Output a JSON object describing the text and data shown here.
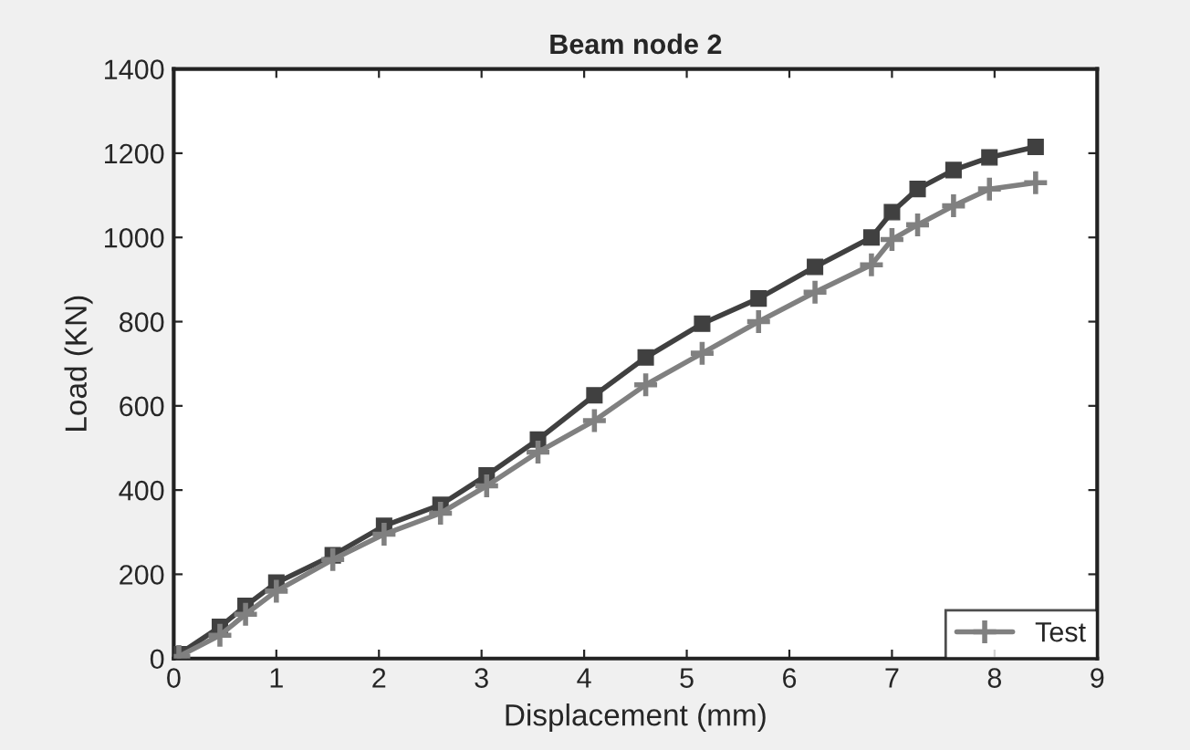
{
  "chart_data": {
    "type": "line",
    "title": "Beam node 2",
    "xlabel": "Displacement (mm)",
    "ylabel": "Load (KN)",
    "xlim": [
      0,
      9
    ],
    "xticks": [
      0,
      1,
      2,
      3,
      4,
      5,
      6,
      7,
      8,
      9
    ],
    "ylim": [
      0,
      1400
    ],
    "yticks": [
      0,
      200,
      400,
      600,
      800,
      1000,
      1200,
      1400
    ],
    "grid": false,
    "legend": "bottom right",
    "line_style": "solid",
    "series": [
      {
        "name": "Test",
        "color": "#808080",
        "marker": "cross",
        "x": [
          0.05,
          0.45,
          0.7,
          1.0,
          1.55,
          2.05,
          2.6,
          3.05,
          3.55,
          4.1,
          4.6,
          5.15,
          5.7,
          6.25,
          6.8,
          7.0,
          7.25,
          7.6,
          7.95,
          8.4
        ],
        "values": [
          5,
          55,
          105,
          160,
          235,
          295,
          345,
          410,
          490,
          565,
          650,
          725,
          800,
          870,
          935,
          995,
          1030,
          1075,
          1115,
          1130
        ]
      },
      {
        "color": "#404040",
        "marker": "square",
        "x": [
          0.05,
          0.45,
          0.7,
          1.0,
          1.55,
          2.05,
          2.6,
          3.05,
          3.55,
          4.1,
          4.6,
          5.15,
          5.7,
          6.25,
          6.8,
          7.0,
          7.25,
          7.6,
          7.95,
          8.4
        ],
        "values": [
          10,
          75,
          125,
          180,
          245,
          315,
          365,
          435,
          520,
          625,
          715,
          795,
          855,
          930,
          1000,
          1060,
          1115,
          1160,
          1190,
          1215
        ]
      }
    ]
  }
}
